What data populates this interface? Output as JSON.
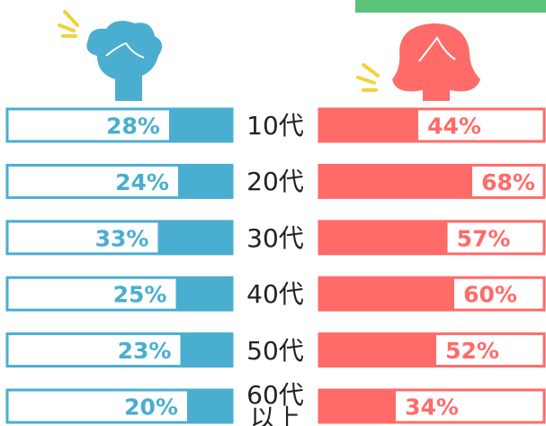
{
  "chart_data": {
    "type": "butterfly-bar",
    "categories": [
      "10代",
      "20代",
      "30代",
      "40代",
      "50代",
      "60代以上"
    ],
    "xlim": [
      0,
      100
    ],
    "series": [
      {
        "color": "#4aaed0",
        "values": [
          28,
          24,
          33,
          25,
          23,
          20
        ],
        "value_labels": [
          "28%",
          "24%",
          "33%",
          "25%",
          "23%",
          "20%"
        ]
      },
      {
        "color": "#ff6b68",
        "values": [
          44,
          68,
          57,
          60,
          52,
          34
        ],
        "value_labels": [
          "44%",
          "68%",
          "57%",
          "60%",
          "52%",
          "34%"
        ]
      }
    ]
  }
}
